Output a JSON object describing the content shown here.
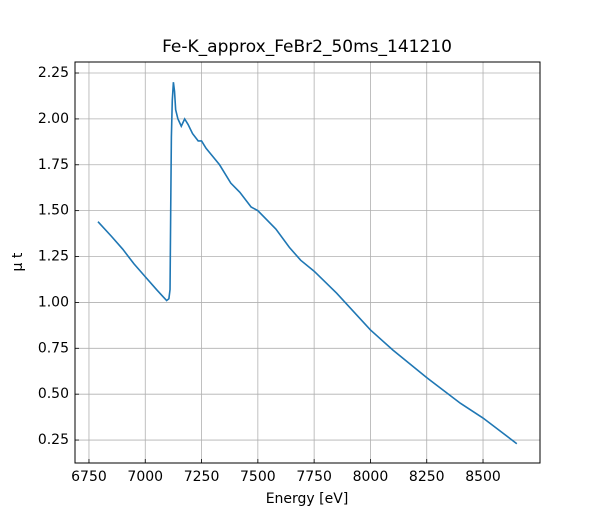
{
  "chart_data": {
    "type": "line",
    "title": "Fe-K_approx_FeBr2_50ms_141210",
    "x_label": "Energy [eV]",
    "y_label": "μ t",
    "x": [
      6790,
      6850,
      6900,
      6950,
      7000,
      7050,
      7080,
      7095,
      7105,
      7110,
      7113,
      7116,
      7120,
      7125,
      7130,
      7135,
      7145,
      7160,
      7175,
      7190,
      7210,
      7235,
      7250,
      7270,
      7290,
      7330,
      7380,
      7420,
      7470,
      7500,
      7580,
      7640,
      7690,
      7750,
      7850,
      8000,
      8100,
      8250,
      8400,
      8500,
      8650
    ],
    "series": [
      {
        "name": "μ t",
        "color": "#1f77b4",
        "values": [
          1.44,
          1.36,
          1.29,
          1.21,
          1.14,
          1.07,
          1.03,
          1.01,
          1.02,
          1.07,
          1.5,
          1.9,
          2.1,
          2.2,
          2.15,
          2.05,
          2.0,
          1.96,
          2.0,
          1.97,
          1.92,
          1.88,
          1.88,
          1.84,
          1.81,
          1.75,
          1.65,
          1.6,
          1.52,
          1.5,
          1.4,
          1.3,
          1.23,
          1.17,
          1.05,
          0.85,
          0.74,
          0.59,
          0.45,
          0.37,
          0.23
        ]
      }
    ],
    "xlim": [
      6688,
      8753
    ],
    "xticks": [
      6750,
      7000,
      7250,
      7500,
      7750,
      8000,
      8250,
      8500
    ],
    "ylim": [
      0.125,
      2.31
    ],
    "yticks": [
      {
        "value": 0.25,
        "label": "0.25"
      },
      {
        "value": 0.5,
        "label": "0.50"
      },
      {
        "value": 0.75,
        "label": "0.75"
      },
      {
        "value": 1.0,
        "label": "1.00"
      },
      {
        "value": 1.25,
        "label": "1.25"
      },
      {
        "value": 1.5,
        "label": "1.50"
      },
      {
        "value": 1.75,
        "label": "1.75"
      },
      {
        "value": 2.0,
        "label": "2.00"
      },
      {
        "value": 2.25,
        "label": "2.25"
      }
    ],
    "grid": true
  }
}
